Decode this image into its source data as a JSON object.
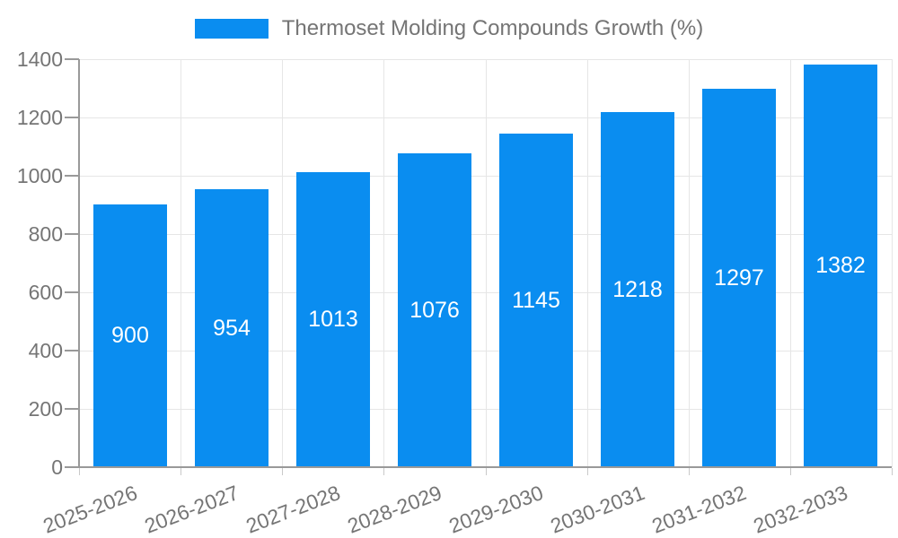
{
  "legend": {
    "label": "Thermoset Molding Compounds Growth (%)"
  },
  "chart_data": {
    "type": "bar",
    "title": "Thermoset Molding Compounds Growth (%)",
    "series_name": "Thermoset Molding Compounds Growth (%)",
    "categories": [
      "2025-2026",
      "2026-2027",
      "2027-2028",
      "2028-2029",
      "2029-2030",
      "2030-2031",
      "2031-2032",
      "2032-2033"
    ],
    "values": [
      900,
      954,
      1013,
      1076,
      1145,
      1218,
      1297,
      1382
    ],
    "value_labels": [
      "900",
      "954",
      "1013",
      "1076",
      "1145",
      "1218",
      "1297",
      "1382"
    ],
    "ylim": [
      0,
      1400
    ],
    "yticks": [
      0,
      200,
      400,
      600,
      800,
      1000,
      1200,
      1400
    ],
    "xlabel": "",
    "ylabel": "",
    "grid": true,
    "legend_position": "top-center",
    "bar_labels_inside": true
  },
  "colors": {
    "bar": "#0a8df0",
    "grid": "#e6e6e6",
    "axis": "#999999",
    "tick_text": "#757575",
    "title_text": "#757575",
    "value_label": "#ffffff",
    "background": "#ffffff"
  }
}
